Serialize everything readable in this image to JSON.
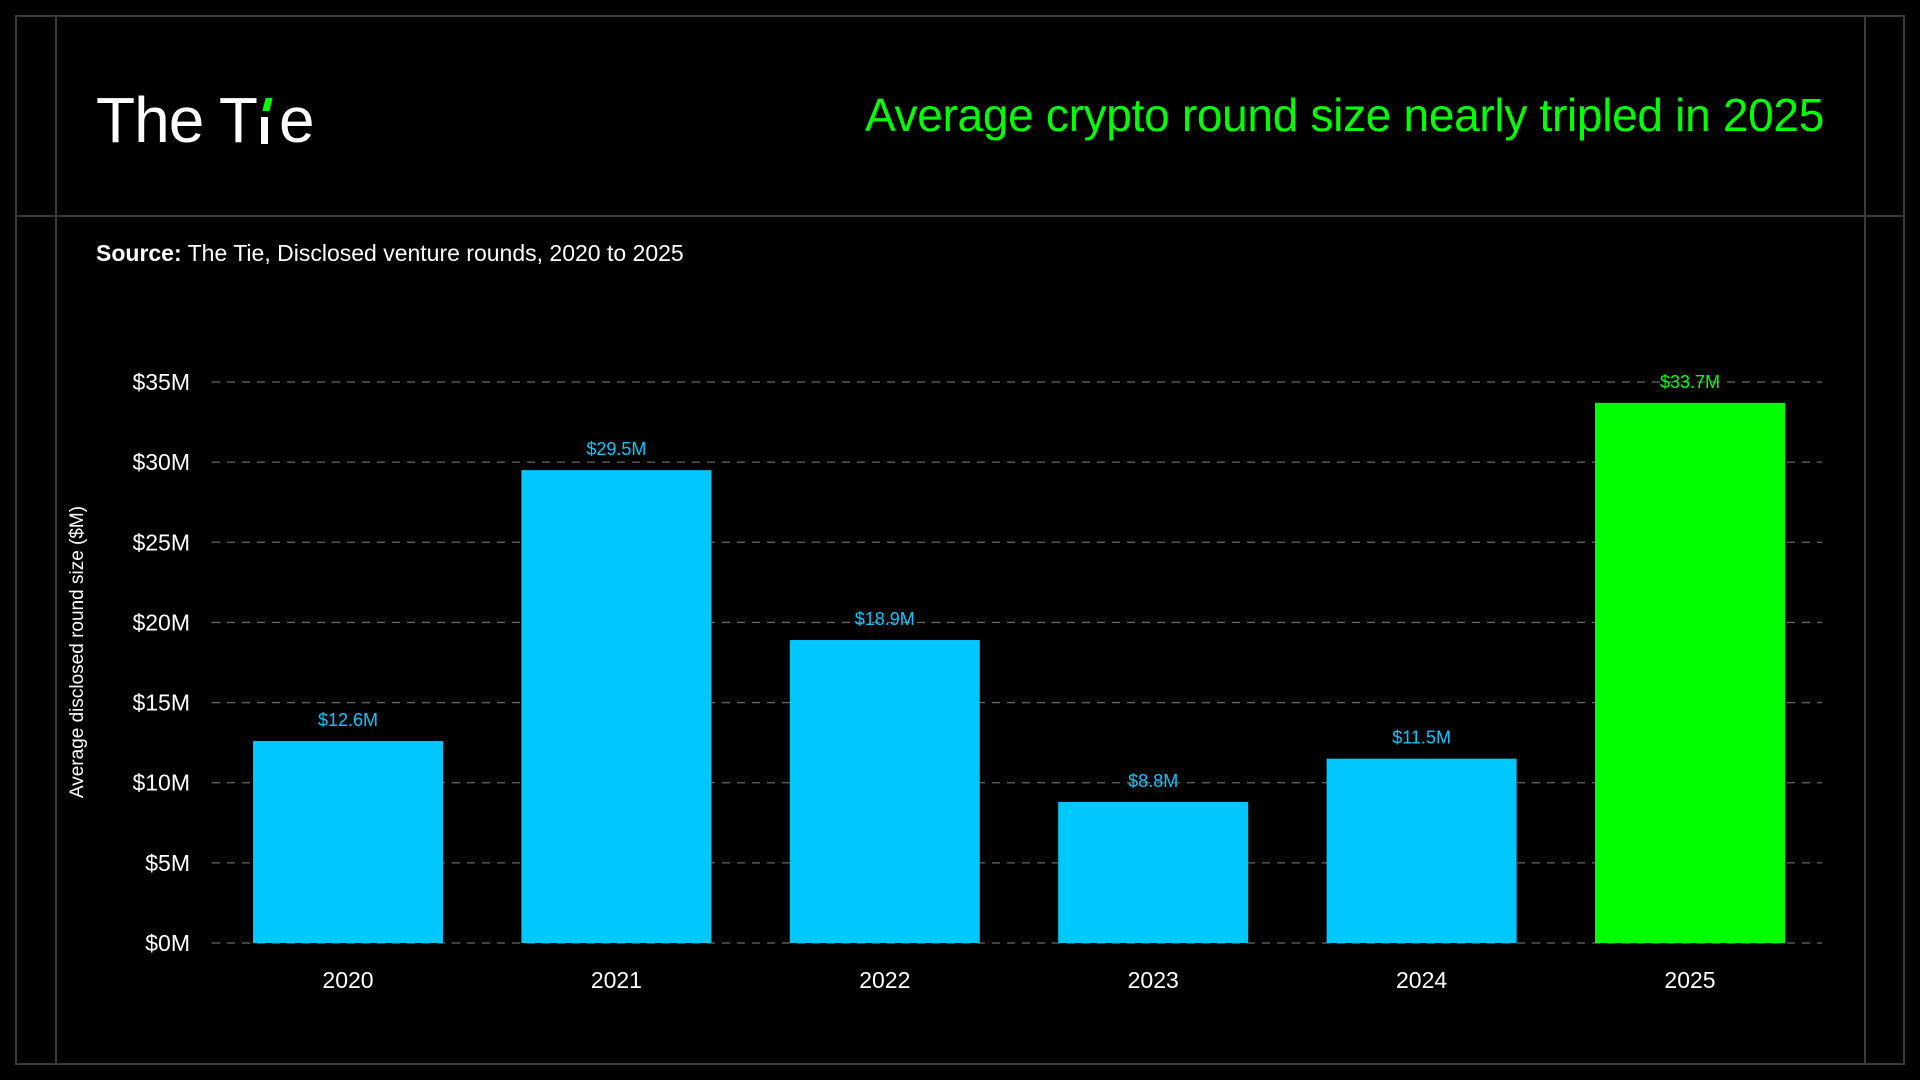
{
  "brand": {
    "logo_text_start": "The T",
    "logo_text_end": "e",
    "accent_color": "#00ff00"
  },
  "headline": "Average crypto round size nearly tripled in 2025",
  "source": {
    "label": "Source:",
    "text": "The Tie, Disclosed venture rounds, 2020 to 2025"
  },
  "colors": {
    "background": "#000000",
    "bar_default": "#00c8ff",
    "bar_highlight": "#00ff00",
    "gridline": "#666666",
    "frame": "#3a3a3a",
    "text": "#ffffff"
  },
  "chart_data": {
    "type": "bar",
    "title": "",
    "xlabel": "",
    "ylabel": "Average disclosed round size ($M)",
    "categories": [
      "2020",
      "2021",
      "2022",
      "2023",
      "2024",
      "2025"
    ],
    "values": [
      12.6,
      29.5,
      18.9,
      8.8,
      11.5,
      33.7
    ],
    "value_labels": [
      "$12.6M",
      "$29.5M",
      "$18.9M",
      "$8.8M",
      "$11.5M",
      "$33.7M"
    ],
    "highlight_category": "2025",
    "ylim": [
      0,
      35
    ],
    "yticks": [
      0,
      5,
      10,
      15,
      20,
      25,
      30,
      35
    ],
    "ytick_labels": [
      "$0M",
      "$5M",
      "$10M",
      "$15M",
      "$20M",
      "$25M",
      "$30M",
      "$35M"
    ],
    "grid": "horizontal dashed",
    "legend": "none"
  }
}
